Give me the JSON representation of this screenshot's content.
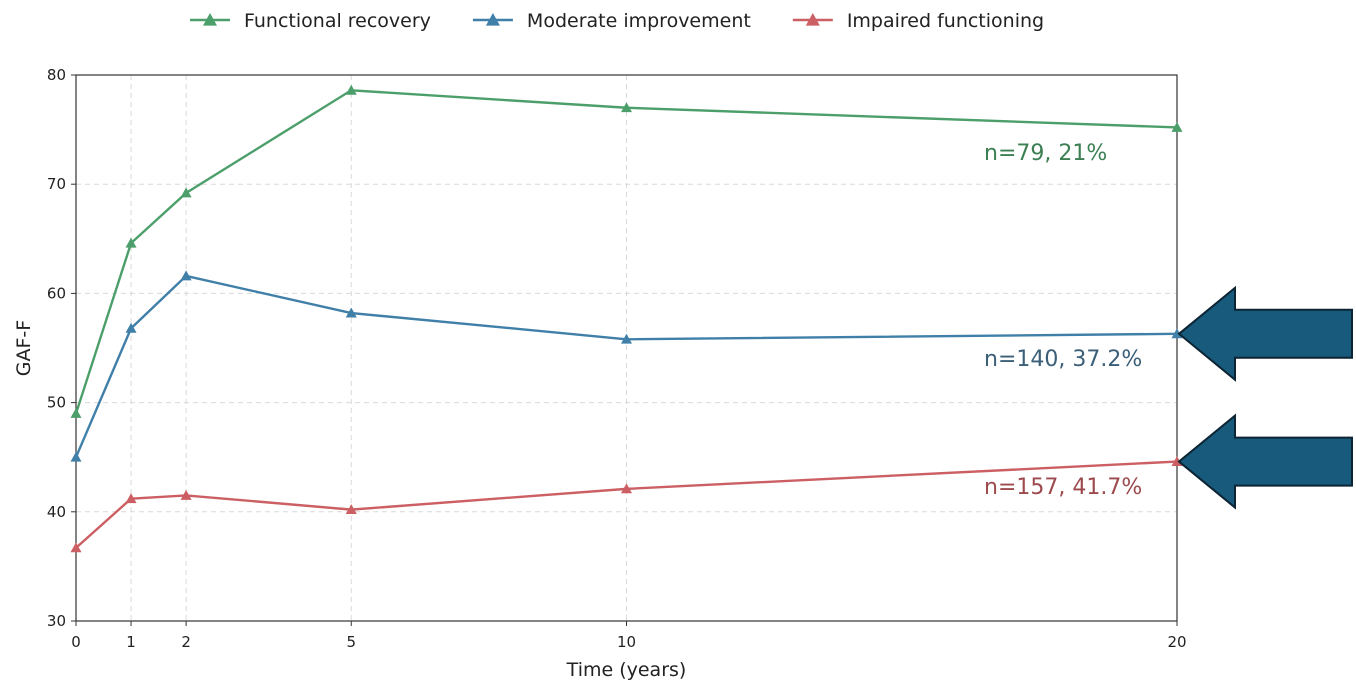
{
  "chart_data": {
    "type": "line",
    "xlabel": "Time (years)",
    "ylabel": "GAF-F",
    "x": [
      0,
      1,
      2,
      5,
      10,
      20
    ],
    "x_ticks": [
      "0",
      "1",
      "2",
      "5",
      "10",
      "20"
    ],
    "y_ticks": [
      "30",
      "40",
      "50",
      "60",
      "70",
      "80"
    ],
    "xlim": [
      0,
      20
    ],
    "ylim": [
      30,
      80
    ],
    "grid": true,
    "legend_position": "top-center",
    "series": [
      {
        "name": "Functional recovery",
        "color": "#4c9f6a",
        "values": [
          49.0,
          64.6,
          69.2,
          78.6,
          77.0,
          75.2
        ]
      },
      {
        "name": "Moderate improvement",
        "color": "#3f7fa8",
        "values": [
          45.0,
          56.8,
          61.6,
          58.2,
          55.8,
          56.3
        ]
      },
      {
        "name": "Impaired functioning",
        "color": "#cc5f63",
        "values": [
          36.7,
          41.2,
          41.5,
          40.2,
          42.1,
          44.6
        ]
      }
    ],
    "annotations": [
      {
        "text": "n=79, 21%",
        "color": "#3c7f52"
      },
      {
        "text": "n=140, 37.2%",
        "color": "#3b5f78"
      },
      {
        "text": "n=157, 41.7%",
        "color": "#9c4a4e"
      }
    ],
    "arrows": [
      {
        "target_series": "Moderate improvement",
        "color": "#175a7c",
        "icon": "arrow-left-icon"
      },
      {
        "target_series": "Impaired functioning",
        "color": "#175a7c",
        "icon": "arrow-left-icon"
      }
    ]
  }
}
